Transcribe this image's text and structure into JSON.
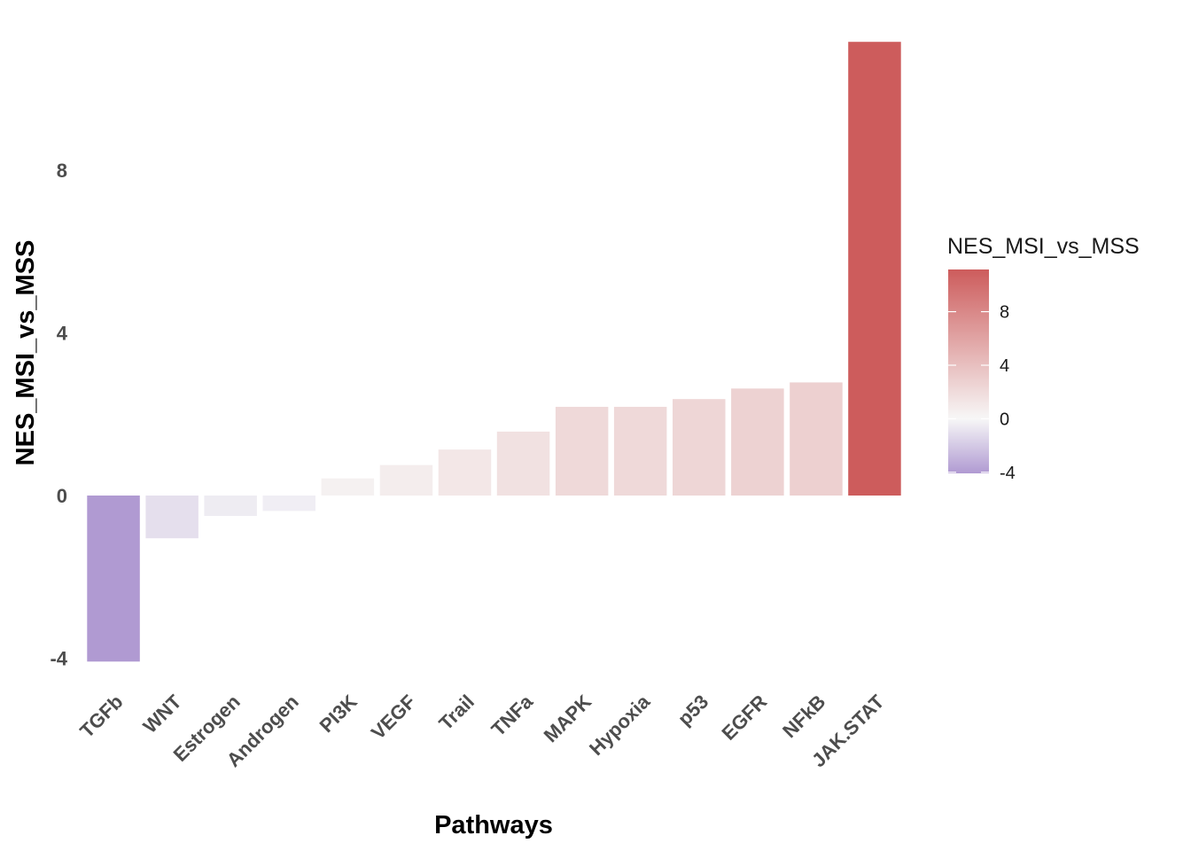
{
  "chart_data": {
    "type": "bar",
    "categories": [
      "TGFb",
      "WNT",
      "Estrogen",
      "Androgen",
      "PI3K",
      "VEGF",
      "Trail",
      "TNFa",
      "MAPK",
      "Hypoxia",
      "p53",
      "EGFR",
      "NFkB",
      "JAK.STAT"
    ],
    "values": [
      -4.08,
      -1.05,
      -0.5,
      -0.38,
      0.42,
      0.75,
      1.13,
      1.57,
      2.18,
      2.18,
      2.37,
      2.63,
      2.78,
      11.15
    ],
    "xlabel": "Pathways",
    "ylabel": "NES_MSI_vs_MSS",
    "ylim": [
      -4.8,
      12.3
    ],
    "yticks": [
      -4,
      0,
      4,
      8
    ],
    "grid": false,
    "legend": {
      "title": "NES_MSI_vs_MSS",
      "placement": "right",
      "ticks": [
        "8",
        "4",
        "0",
        "-4"
      ],
      "range": [
        -4.08,
        11.15
      ],
      "colors": {
        "low": "#b09ad2",
        "mid": "#f7f7f7",
        "high": "#cd5c5c"
      }
    }
  }
}
